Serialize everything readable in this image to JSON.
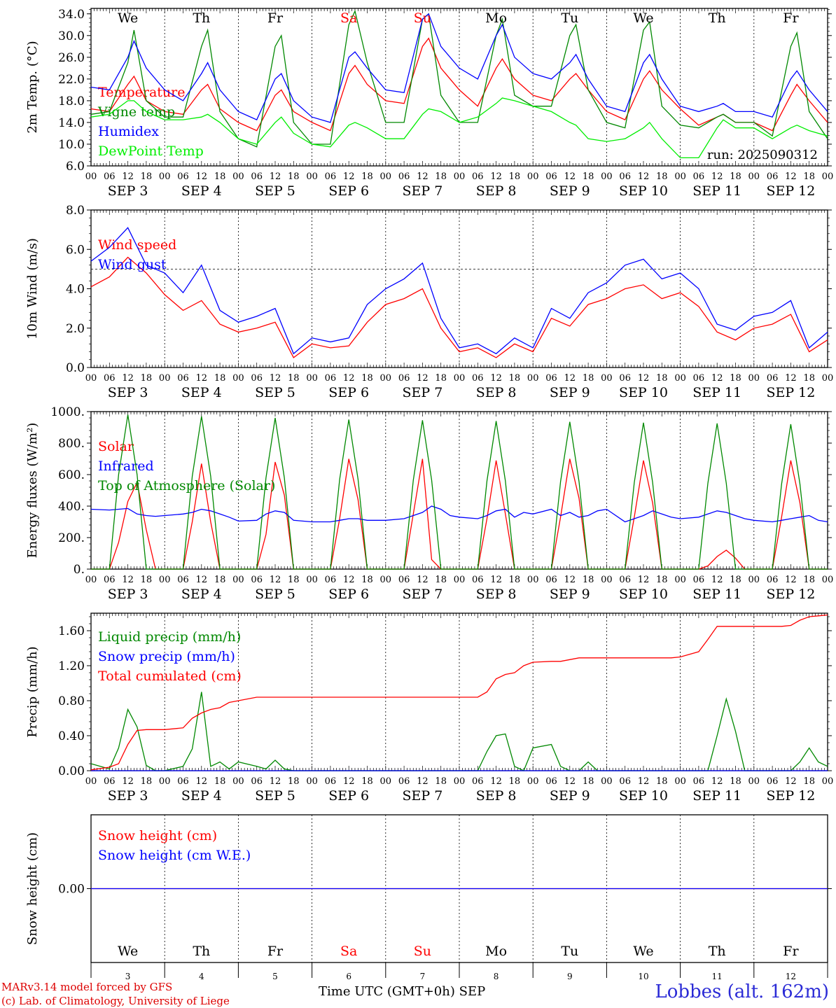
{
  "run_label": "run: 2025090312",
  "station": "Lobbes (alt. 162m)",
  "credits": [
    "MARv3.14 model forced by GFS",
    "(c) Lab. of Climatology, University of Liege"
  ],
  "x_axis": {
    "title": "Time UTC (GMT+0h)",
    "month": "SEP",
    "days": [
      {
        "day": "We",
        "date": "SEP  3",
        "num": "3",
        "weekend": false
      },
      {
        "day": "Th",
        "date": "SEP  4",
        "num": "4",
        "weekend": false
      },
      {
        "day": "Fr",
        "date": "SEP  5",
        "num": "5",
        "weekend": false
      },
      {
        "day": "Sa",
        "date": "SEP  6",
        "num": "6",
        "weekend": true
      },
      {
        "day": "Su",
        "date": "SEP  7",
        "num": "7",
        "weekend": true
      },
      {
        "day": "Mo",
        "date": "SEP  8",
        "num": "8",
        "weekend": false
      },
      {
        "day": "Tu",
        "date": "SEP  9",
        "num": "9",
        "weekend": false
      },
      {
        "day": "We",
        "date": "SEP 10",
        "num": "10",
        "weekend": false
      },
      {
        "day": "Th",
        "date": "SEP 11",
        "num": "11",
        "weekend": false
      },
      {
        "day": "Fr",
        "date": "SEP 12",
        "num": "12",
        "weekend": false
      }
    ],
    "hour_labels": [
      "00",
      "06",
      "12",
      "18"
    ]
  },
  "chart_data": [
    {
      "type": "line",
      "ylabel": "2m Temp. (°C)",
      "ylim": [
        6,
        35
      ],
      "yticks": [
        6,
        10,
        14,
        18,
        22,
        26,
        30,
        34
      ],
      "ytick_labels": [
        "6.0",
        "10.0",
        "14.0",
        "18.0",
        "22.0",
        "26.0",
        "30.0",
        "34.0"
      ],
      "x_hours": [
        0,
        6,
        12,
        14,
        18,
        24,
        30,
        36,
        38,
        42,
        48,
        54,
        60,
        62,
        66,
        72,
        78,
        84,
        86,
        90,
        96,
        102,
        108,
        110,
        114,
        120,
        126,
        132,
        134,
        138,
        144,
        150,
        156,
        158,
        162,
        168,
        174,
        180,
        182,
        186,
        192,
        198,
        204,
        206,
        210,
        216,
        222,
        228,
        230,
        234,
        240
      ],
      "series": [
        {
          "name": "Temperature",
          "color": "#ff0000",
          "values": [
            16.5,
            16,
            21,
            22.5,
            18,
            16,
            15.5,
            20,
            21,
            16.5,
            14,
            12.5,
            19,
            20,
            16,
            14,
            12.5,
            23,
            24.5,
            21,
            18,
            17.5,
            28,
            29.5,
            24,
            20,
            17,
            24,
            25.7,
            22,
            19,
            18,
            22,
            23,
            20,
            16,
            14.5,
            22,
            23.5,
            20,
            16.5,
            13.5,
            15,
            15.5,
            14,
            14,
            12.5,
            19,
            21,
            18,
            14
          ]
        },
        {
          "name": "Vigne temp",
          "color": "#008800",
          "values": [
            15.5,
            16,
            25,
            31,
            18,
            15,
            15,
            28,
            31,
            16,
            11,
            9.5,
            28,
            30,
            14,
            10,
            10,
            32,
            34.5,
            25,
            14,
            14,
            33,
            34,
            19,
            14,
            14,
            30,
            33,
            19,
            17,
            17,
            30,
            32,
            20,
            14,
            13,
            31,
            32.5,
            17,
            13.5,
            13,
            15,
            15.5,
            14,
            14,
            11.5,
            28,
            30.5,
            16,
            11
          ]
        },
        {
          "name": "Humidex",
          "color": "#0000ff",
          "values": [
            20.5,
            20,
            26,
            29,
            24,
            20,
            18,
            23,
            25,
            20,
            16,
            14.5,
            22,
            23,
            18,
            15,
            14,
            26,
            27,
            24,
            20,
            19.5,
            33,
            34,
            28,
            24,
            22,
            30,
            32,
            26,
            23,
            22,
            25,
            26.5,
            22,
            17,
            16,
            25,
            26.5,
            22,
            17,
            16,
            17,
            17.5,
            16,
            16,
            15,
            22,
            23.5,
            20,
            16
          ]
        },
        {
          "name": "DewPoint Temp",
          "color": "#00ee00",
          "values": [
            15,
            15.5,
            18,
            18,
            16,
            14.5,
            14.5,
            15,
            15.5,
            14,
            11,
            10,
            14,
            15,
            12,
            10,
            9.5,
            13.5,
            14,
            13,
            11,
            11,
            15.5,
            16.5,
            16,
            14,
            15,
            17.5,
            18.5,
            18,
            17,
            16,
            14,
            13.5,
            11,
            10.5,
            11,
            13,
            14,
            11,
            7.5,
            7.5,
            13,
            14.5,
            13,
            13,
            11,
            13,
            13.5,
            12.5,
            11.5
          ]
        }
      ]
    },
    {
      "type": "line",
      "ylabel": "10m Wind (m/s)",
      "ylim": [
        0,
        8
      ],
      "yticks": [
        0,
        2,
        4,
        6,
        8
      ],
      "ytick_labels": [
        "0.0",
        "2.0",
        "4.0",
        "6.0",
        "8.0"
      ],
      "reference_line": 5,
      "x_hours": [
        0,
        6,
        12,
        18,
        24,
        30,
        36,
        42,
        48,
        54,
        60,
        66,
        72,
        78,
        84,
        90,
        96,
        102,
        108,
        114,
        120,
        126,
        132,
        138,
        144,
        150,
        156,
        162,
        168,
        174,
        180,
        186,
        192,
        198,
        204,
        210,
        216,
        222,
        228,
        234,
        240
      ],
      "series": [
        {
          "name": "Wind speed",
          "color": "#ff0000",
          "values": [
            4.1,
            4.6,
            5.6,
            4.8,
            3.7,
            2.9,
            3.4,
            2.2,
            1.8,
            2,
            2.3,
            0.5,
            1.2,
            1,
            1.1,
            2.3,
            3.2,
            3.5,
            4,
            2,
            0.8,
            1,
            0.5,
            1.2,
            0.8,
            2.5,
            2.1,
            3.2,
            3.5,
            4,
            4.2,
            3.5,
            3.8,
            3.1,
            1.8,
            1.4,
            2,
            2.2,
            2.7,
            0.8,
            1.4
          ]
        },
        {
          "name": "Wind gust",
          "color": "#0000ff",
          "values": [
            5.4,
            6.1,
            7.1,
            5.2,
            4.8,
            3.8,
            5.2,
            2.9,
            2.3,
            2.6,
            3,
            0.7,
            1.5,
            1.3,
            1.5,
            3.2,
            4,
            4.5,
            5.3,
            2.5,
            1,
            1.2,
            0.7,
            1.5,
            1,
            3,
            2.5,
            3.8,
            4.3,
            5.2,
            5.5,
            4.5,
            4.8,
            4,
            2.2,
            1.9,
            2.6,
            2.8,
            3.4,
            1,
            1.8
          ]
        }
      ]
    },
    {
      "type": "line",
      "ylabel": "Energy fluxes (W/m²)",
      "ylim": [
        0,
        1000
      ],
      "yticks": [
        0,
        200,
        400,
        600,
        800,
        1000
      ],
      "ytick_labels": [
        "0.",
        "200.",
        "400.",
        "600.",
        "800.",
        "1000."
      ],
      "x_hours": [
        0,
        6,
        9,
        12,
        15,
        18,
        21,
        24,
        30,
        33,
        36,
        39,
        42,
        45,
        48,
        54,
        57,
        60,
        63,
        66,
        69,
        72,
        78,
        81,
        84,
        87,
        90,
        93,
        96,
        102,
        105,
        108,
        111,
        114,
        117,
        120,
        126,
        129,
        132,
        135,
        138,
        141,
        144,
        150,
        153,
        156,
        159,
        162,
        165,
        168,
        174,
        177,
        180,
        183,
        186,
        189,
        192,
        198,
        201,
        204,
        207,
        210,
        213,
        216,
        222,
        225,
        228,
        231,
        234,
        237,
        240
      ],
      "series": [
        {
          "name": "Solar",
          "color": "#ff0000",
          "values": [
            0,
            0,
            170,
            430,
            550,
            250,
            0,
            0,
            0,
            300,
            670,
            300,
            0,
            0,
            0,
            0,
            220,
            680,
            470,
            0,
            0,
            0,
            0,
            320,
            700,
            440,
            0,
            0,
            0,
            0,
            350,
            700,
            60,
            0,
            0,
            0,
            0,
            320,
            690,
            350,
            0,
            0,
            0,
            0,
            330,
            700,
            450,
            0,
            0,
            0,
            0,
            330,
            690,
            420,
            0,
            0,
            0,
            0,
            20,
            80,
            120,
            70,
            0,
            0,
            0,
            330,
            690,
            420,
            0,
            0,
            0
          ]
        },
        {
          "name": "Infrared",
          "color": "#0000ff",
          "values": [
            380,
            375,
            380,
            385,
            350,
            340,
            335,
            340,
            350,
            360,
            380,
            370,
            350,
            330,
            305,
            310,
            350,
            370,
            360,
            310,
            305,
            300,
            300,
            310,
            320,
            320,
            310,
            310,
            310,
            320,
            340,
            360,
            400,
            380,
            340,
            330,
            320,
            340,
            370,
            380,
            330,
            360,
            350,
            380,
            340,
            360,
            330,
            340,
            370,
            380,
            300,
            320,
            340,
            370,
            350,
            330,
            320,
            330,
            350,
            370,
            360,
            340,
            320,
            310,
            300,
            310,
            320,
            330,
            340,
            310,
            300
          ]
        },
        {
          "name": "Top of Atmosphere (Solar)",
          "color": "#008800",
          "values": [
            0,
            0,
            600,
            980,
            600,
            0,
            0,
            0,
            0,
            590,
            970,
            590,
            0,
            0,
            0,
            0,
            580,
            960,
            580,
            0,
            0,
            0,
            0,
            570,
            950,
            570,
            0,
            0,
            0,
            0,
            565,
            945,
            565,
            0,
            0,
            0,
            0,
            560,
            940,
            560,
            0,
            0,
            0,
            0,
            555,
            935,
            555,
            0,
            0,
            0,
            0,
            550,
            930,
            550,
            0,
            0,
            0,
            0,
            545,
            925,
            545,
            0,
            0,
            0,
            0,
            540,
            920,
            540,
            0,
            0,
            0
          ]
        }
      ]
    },
    {
      "type": "line",
      "ylabel": "Precip (mm/h)",
      "ylim": [
        0,
        1.8
      ],
      "yticks": [
        0,
        0.4,
        0.8,
        1.2,
        1.6
      ],
      "ytick_labels": [
        "0.00",
        "0.40",
        "0.80",
        "1.20",
        "1.60"
      ],
      "x_hours": [
        0,
        6,
        9,
        12,
        15,
        18,
        21,
        24,
        30,
        33,
        36,
        39,
        42,
        45,
        48,
        54,
        57,
        60,
        63,
        66,
        69,
        72,
        78,
        81,
        84,
        87,
        90,
        93,
        96,
        102,
        105,
        108,
        111,
        114,
        117,
        120,
        126,
        129,
        132,
        135,
        138,
        141,
        144,
        150,
        153,
        156,
        159,
        162,
        165,
        168,
        174,
        177,
        180,
        183,
        186,
        189,
        192,
        198,
        201,
        204,
        207,
        210,
        213,
        216,
        222,
        225,
        228,
        231,
        234,
        237,
        240
      ],
      "series": [
        {
          "name": "Liquid precip (mm/h)",
          "color": "#008800",
          "values": [
            0.08,
            0.02,
            0.26,
            0.7,
            0.5,
            0.06,
            0,
            0,
            0.05,
            0.25,
            0.9,
            0.05,
            0.1,
            0.02,
            0.1,
            0.05,
            0.02,
            0.12,
            0.02,
            0,
            0,
            0,
            0,
            0,
            0,
            0,
            0,
            0,
            0,
            0,
            0,
            0,
            0,
            0,
            0,
            0,
            0,
            0.22,
            0.4,
            0.42,
            0.05,
            0,
            0.26,
            0.3,
            0.05,
            0,
            0,
            0.1,
            0,
            0,
            0,
            0,
            0,
            0,
            0,
            0,
            0,
            0,
            0,
            0.4,
            0.82,
            0.45,
            0,
            0,
            0,
            0,
            0,
            0.1,
            0.26,
            0.1,
            0.05
          ]
        },
        {
          "name": "Snow precip (mm/h)",
          "color": "#0000ff",
          "values": [
            0,
            0,
            0,
            0,
            0,
            0,
            0,
            0,
            0,
            0,
            0,
            0,
            0,
            0,
            0,
            0,
            0,
            0,
            0,
            0,
            0,
            0,
            0,
            0,
            0,
            0,
            0,
            0,
            0,
            0,
            0,
            0,
            0,
            0,
            0,
            0,
            0,
            0,
            0,
            0,
            0,
            0,
            0,
            0,
            0,
            0,
            0,
            0,
            0,
            0,
            0,
            0,
            0,
            0,
            0,
            0,
            0,
            0,
            0,
            0,
            0,
            0,
            0,
            0,
            0,
            0,
            0,
            0,
            0,
            0,
            0
          ]
        },
        {
          "name": "Total cumulated (cm)",
          "color": "#ff0000",
          "values": [
            0.01,
            0.04,
            0.08,
            0.3,
            0.46,
            0.47,
            0.47,
            0.47,
            0.49,
            0.6,
            0.66,
            0.7,
            0.72,
            0.78,
            0.8,
            0.84,
            0.84,
            0.84,
            0.84,
            0.84,
            0.84,
            0.84,
            0.84,
            0.84,
            0.84,
            0.84,
            0.84,
            0.84,
            0.84,
            0.84,
            0.84,
            0.84,
            0.84,
            0.84,
            0.84,
            0.84,
            0.84,
            0.9,
            1.05,
            1.1,
            1.12,
            1.2,
            1.24,
            1.25,
            1.25,
            1.27,
            1.29,
            1.29,
            1.29,
            1.29,
            1.29,
            1.29,
            1.29,
            1.29,
            1.29,
            1.29,
            1.3,
            1.36,
            1.5,
            1.65,
            1.65,
            1.65,
            1.65,
            1.65,
            1.65,
            1.65,
            1.66,
            1.72,
            1.76,
            1.77,
            1.78
          ]
        }
      ]
    },
    {
      "type": "line",
      "ylabel": "Snow height (cm)",
      "ylim": [
        -1,
        1
      ],
      "yticks": [
        0
      ],
      "ytick_labels": [
        "0.00"
      ],
      "x_hours": [
        0,
        240
      ],
      "series": [
        {
          "name": "Snow height (cm)",
          "color": "#ff0000",
          "values": [
            0,
            0
          ]
        },
        {
          "name": "Snow height (cm W.E.)",
          "color": "#0000ff",
          "values": [
            0,
            0
          ]
        }
      ]
    }
  ],
  "colors": {
    "weekend": "#ff0000",
    "weekday": "#000000",
    "station": "#2b2bd6"
  }
}
